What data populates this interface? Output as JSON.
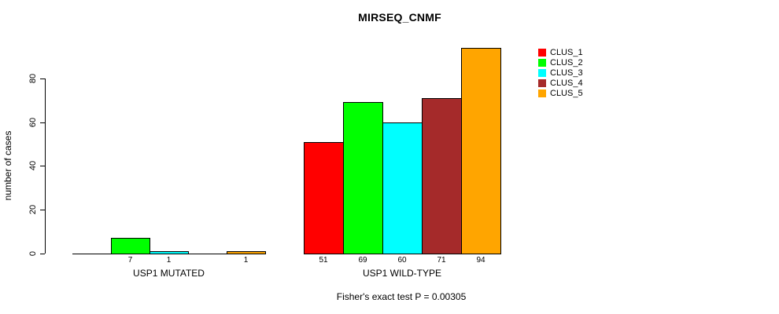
{
  "title": "MIRSEQ_CNMF",
  "chart_data": {
    "type": "bar",
    "title": "MIRSEQ_CNMF",
    "xlabel": "",
    "ylabel": "number of cases",
    "ylim": [
      0,
      94
    ],
    "yticks": [
      0,
      20,
      40,
      60,
      80
    ],
    "grid": false,
    "legend_position": "top-right",
    "clusters": [
      {
        "name": "CLUS_1",
        "color": "#FF0000"
      },
      {
        "name": "CLUS_2",
        "color": "#00FF00"
      },
      {
        "name": "CLUS_3",
        "color": "#00FFFF"
      },
      {
        "name": "CLUS_4",
        "color": "#A52A2A"
      },
      {
        "name": "CLUS_5",
        "color": "#FFA500"
      }
    ],
    "groups": [
      {
        "label": "USP1 MUTATED",
        "values": [
          0,
          7,
          1,
          0,
          1
        ]
      },
      {
        "label": "USP1 WILD-TYPE",
        "values": [
          51,
          69,
          60,
          71,
          94
        ]
      }
    ],
    "annotation": "Fisher's exact test P = 0.00305"
  }
}
